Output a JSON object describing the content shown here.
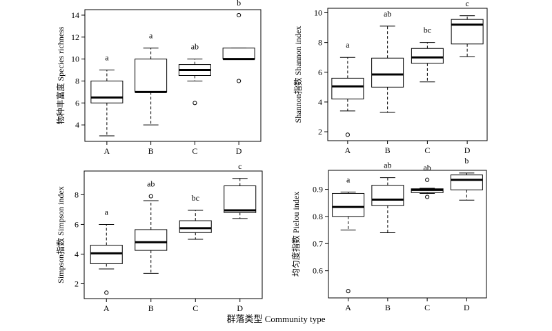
{
  "figure": {
    "xlabel": "群落类型 Community type"
  },
  "chart_data": [
    {
      "type": "box",
      "ylabel": "物种丰富度 Species richness",
      "categories": [
        "A",
        "B",
        "C",
        "D"
      ],
      "ylim": [
        2.5,
        14.5
      ],
      "yticks": [
        4,
        6,
        8,
        10,
        12,
        14
      ],
      "ytick_labels": [
        "4",
        "6",
        "8",
        "10",
        "12",
        "14"
      ],
      "grid": false,
      "boxes": [
        {
          "category": "A",
          "min": 3,
          "q1": 6,
          "median": 6.5,
          "q3": 8,
          "max": 9,
          "outliers": [],
          "group": "a"
        },
        {
          "category": "B",
          "min": 4,
          "q1": 7,
          "median": 7,
          "q3": 10,
          "max": 11,
          "outliers": [],
          "group": "a"
        },
        {
          "category": "C",
          "min": 8,
          "q1": 8.5,
          "median": 9,
          "q3": 9.5,
          "max": 10,
          "outliers": [
            6
          ],
          "group": "ab"
        },
        {
          "category": "D",
          "min": 10,
          "q1": 10,
          "median": 10,
          "q3": 11,
          "max": 11,
          "outliers": [
            8,
            14
          ],
          "group": "b"
        }
      ]
    },
    {
      "type": "box",
      "ylabel": "Shannon指数 Shannon index",
      "categories": [
        "A",
        "B",
        "C",
        "D"
      ],
      "ylim": [
        1.4,
        10.3
      ],
      "yticks": [
        2,
        4,
        6,
        8,
        10
      ],
      "ytick_labels": [
        "2",
        "4",
        "6",
        "8",
        "10"
      ],
      "grid": false,
      "boxes": [
        {
          "category": "A",
          "min": 3.4,
          "q1": 4.2,
          "median": 5.05,
          "q3": 5.6,
          "max": 7.0,
          "outliers": [
            1.8
          ],
          "group": "a"
        },
        {
          "category": "B",
          "min": 3.3,
          "q1": 5.0,
          "median": 5.85,
          "q3": 6.95,
          "max": 9.1,
          "outliers": [],
          "group": "ab"
        },
        {
          "category": "C",
          "min": 5.35,
          "q1": 6.6,
          "median": 7.0,
          "q3": 7.6,
          "max": 8.0,
          "outliers": [],
          "group": "bc"
        },
        {
          "category": "D",
          "min": 7.05,
          "q1": 7.9,
          "median": 9.2,
          "q3": 9.55,
          "max": 9.8,
          "outliers": [],
          "group": "c"
        }
      ]
    },
    {
      "type": "box",
      "ylabel": "Simpson指数 Simpson index",
      "categories": [
        "A",
        "B",
        "C",
        "D"
      ],
      "ylim": [
        1.0,
        9.6
      ],
      "yticks": [
        2,
        4,
        6,
        8
      ],
      "ytick_labels": [
        "2",
        "4",
        "6",
        "8"
      ],
      "grid": false,
      "boxes": [
        {
          "category": "A",
          "min": 3.0,
          "q1": 3.35,
          "median": 4.05,
          "q3": 4.6,
          "max": 6.0,
          "outliers": [
            1.4
          ],
          "group": "a"
        },
        {
          "category": "B",
          "min": 2.7,
          "q1": 4.25,
          "median": 4.8,
          "q3": 5.65,
          "max": 7.6,
          "outliers": [
            7.9
          ],
          "group": "ab"
        },
        {
          "category": "C",
          "min": 5.0,
          "q1": 5.45,
          "median": 5.75,
          "q3": 6.25,
          "max": 6.95,
          "outliers": [],
          "group": "bc"
        },
        {
          "category": "D",
          "min": 6.4,
          "q1": 6.8,
          "median": 6.95,
          "q3": 8.6,
          "max": 9.1,
          "outliers": [],
          "group": "c"
        }
      ]
    },
    {
      "type": "box",
      "ylabel": "均匀度指数 Pielou index",
      "categories": [
        "A",
        "B",
        "C",
        "D"
      ],
      "ylim": [
        0.5,
        0.97
      ],
      "yticks": [
        0.6,
        0.7,
        0.8,
        0.9
      ],
      "ytick_labels": [
        "0.6",
        "0.7",
        "0.8",
        "0.9"
      ],
      "grid": false,
      "boxes": [
        {
          "category": "A",
          "min": 0.75,
          "q1": 0.8,
          "median": 0.835,
          "q3": 0.885,
          "max": 0.89,
          "outliers": [
            0.525
          ],
          "group": "a"
        },
        {
          "category": "B",
          "min": 0.74,
          "q1": 0.84,
          "median": 0.862,
          "q3": 0.915,
          "max": 0.943,
          "outliers": [],
          "group": "ab"
        },
        {
          "category": "C",
          "min": 0.885,
          "q1": 0.888,
          "median": 0.898,
          "q3": 0.902,
          "max": 0.904,
          "outliers": [
            0.935,
            0.872
          ],
          "group": "ab"
        },
        {
          "category": "D",
          "min": 0.86,
          "q1": 0.898,
          "median": 0.935,
          "q3": 0.953,
          "max": 0.96,
          "outliers": [],
          "group": "b"
        }
      ]
    }
  ]
}
